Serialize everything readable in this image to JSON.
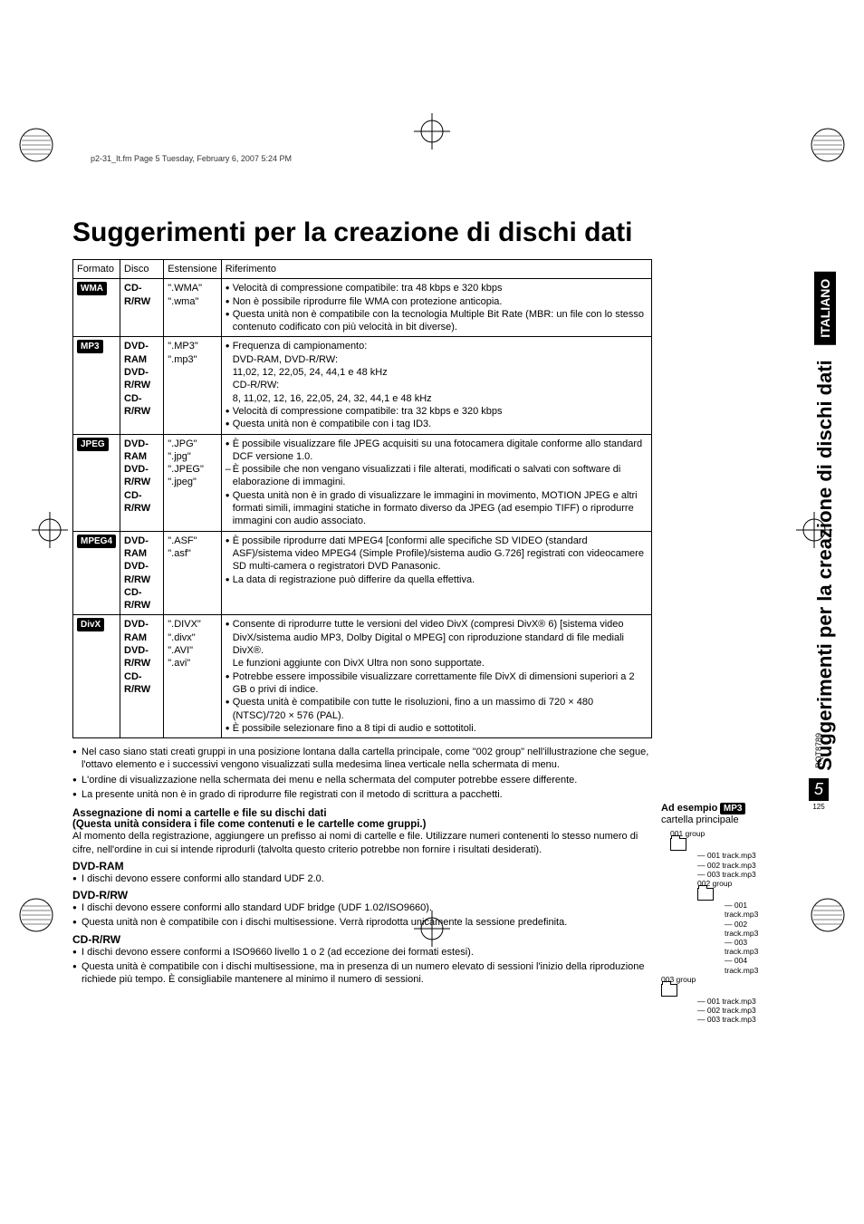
{
  "page_indicator": "p2-31_It.fm  Page 5  Tuesday, February 6, 2007  5:24 PM",
  "main_title": "Suggerimenti per la creazione di dischi dati",
  "table": {
    "headers": [
      "Formato",
      "Disco",
      "Estensione",
      "Riferimento"
    ],
    "rows": [
      {
        "format": "WMA",
        "disco": "CD-R/RW",
        "ext": "\".WMA\"\n\".wma\"",
        "ref": [
          {
            "t": "dot",
            "text": "Velocità di compressione compatibile: tra 48 kbps e 320 kbps"
          },
          {
            "t": "dot",
            "text": "Non è possibile riprodurre file WMA con protezione anticopia."
          },
          {
            "t": "dot",
            "text": "Questa unità non è compatibile con la tecnologia Multiple Bit Rate (MBR: un file con lo stesso contenuto codificato con più velocità in bit diverse)."
          }
        ]
      },
      {
        "format": "MP3",
        "disco": "DVD-RAM\nDVD-R/RW\nCD-R/RW",
        "ext": "\".MP3\"\n\".mp3\"",
        "ref": [
          {
            "t": "dot",
            "text": "Frequenza di campionamento:\nDVD-RAM, DVD-R/RW:\n11,02, 12, 22,05, 24, 44,1 e 48 kHz\nCD-R/RW:\n8, 11,02, 12, 16, 22,05, 24, 32, 44,1 e 48 kHz"
          },
          {
            "t": "dot",
            "text": "Velocità di compressione compatibile: tra 32 kbps e 320 kbps"
          },
          {
            "t": "dot",
            "text": "Questa unità non è compatibile con i tag ID3."
          }
        ]
      },
      {
        "format": "JPEG",
        "disco": "DVD-RAM\nDVD-R/RW\nCD-R/RW",
        "ext": "\".JPG\"\n\".jpg\"\n\".JPEG\"\n\".jpeg\"",
        "ref": [
          {
            "t": "dot",
            "text": "È possibile visualizzare file JPEG acquisiti su una fotocamera digitale conforme allo standard DCF versione 1.0."
          },
          {
            "t": "dash",
            "text": "È possibile che non vengano visualizzati i file alterati, modificati o salvati con software di elaborazione di immagini."
          },
          {
            "t": "dot",
            "text": "Questa unità non è in grado di visualizzare le immagini in movimento, MOTION JPEG e altri formati simili, immagini statiche in formato diverso da JPEG (ad esempio TIFF) o riprodurre immagini con audio associato."
          }
        ]
      },
      {
        "format": "MPEG4",
        "disco": "DVD-RAM\nDVD-R/RW\nCD-R/RW",
        "ext": "\".ASF\"\n\".asf\"",
        "ref": [
          {
            "t": "dot",
            "text": "È possibile riprodurre dati MPEG4 [conformi alle specifiche SD VIDEO (standard ASF)/sistema video MPEG4 (Simple Profile)/sistema audio G.726] registrati con videocamere SD multi-camera o registratori DVD Panasonic."
          },
          {
            "t": "dot",
            "text": "La data di registrazione può differire da quella effettiva."
          }
        ]
      },
      {
        "format": "DivX",
        "disco": "DVD-RAM\nDVD-R/RW\nCD-R/RW",
        "ext": "\".DIVX\"\n\".divx\"\n\".AVI\"\n\".avi\"",
        "ref": [
          {
            "t": "dot",
            "text": "Consente di riprodurre tutte le versioni del video DivX (compresi DivX® 6) [sistema video DivX/sistema audio MP3, Dolby Digital o MPEG] con riproduzione standard di file mediali DivX®.\nLe funzioni aggiunte con DivX Ultra non sono supportate."
          },
          {
            "t": "dot",
            "text": "Potrebbe essere impossibile visualizzare correttamente file DivX di dimensioni superiori a 2 GB o privi di indice."
          },
          {
            "t": "dot",
            "text": "Questa unità è compatibile con tutte le risoluzioni, fino a un massimo di 720 × 480 (NTSC)/720 × 576 (PAL)."
          },
          {
            "t": "dot",
            "text": "È possibile selezionare fino a 8 tipi di audio e sottotitoli."
          }
        ]
      }
    ]
  },
  "notes": [
    "Nel caso siano stati creati gruppi in una posizione lontana dalla cartella principale, come \"002 group\" nell'illustrazione che segue, l'ottavo elemento e i successivi vengono visualizzati sulla medesima linea verticale nella schermata di menu.",
    "L'ordine di visualizzazione nella schermata dei menu e nella schermata del computer potrebbe essere differente.",
    "La presente unità non è in grado di riprodurre file registrati con il metodo di scrittura a pacchetti."
  ],
  "assign": {
    "title": "Assegnazione di nomi a cartelle e file su dischi dati",
    "subtitle": "(Questa unità considera i file come contenuti e le cartelle come gruppi.)",
    "body": "Al momento della registrazione, aggiungere un prefisso ai nomi di cartelle e file. Utilizzare numeri contenenti lo stesso numero di cifre, nell'ordine in cui si intende riprodurli (talvolta questo criterio potrebbe non fornire i risultati desiderati)."
  },
  "dvd_ram": {
    "title": "DVD-RAM",
    "items": [
      "I dischi devono essere conformi allo standard UDF 2.0."
    ]
  },
  "dvd_rrw": {
    "title": "DVD-R/RW",
    "items": [
      "I dischi devono essere conformi allo standard UDF bridge (UDF 1.02/ISO9660).",
      "Questa unità non è compatibile con i dischi multisessione. Verrà riprodotta unicamente la sessione predefinita."
    ]
  },
  "cd_rrw": {
    "title": "CD-R/RW",
    "items": [
      "I dischi devono essere conformi a ISO9660 livello 1 o 2 (ad eccezione dei formati estesi).",
      "Questa unità è compatibile con i dischi multisessione, ma in presenza di un numero elevato di sessioni l'inizio della riproduzione richiede più tempo. È consigliabile mantenere al minimo il numero di sessioni."
    ]
  },
  "example": {
    "label": "Ad esempio",
    "badge": "MP3",
    "root": "cartella principale",
    "g1": "001 group",
    "g1_items": [
      "001 track.mp3",
      "002 track.mp3",
      "003 track.mp3"
    ],
    "g2": "002 group",
    "g2_items": [
      "001 track.mp3",
      "002 track.mp3",
      "003 track.mp3",
      "004 track.mp3"
    ],
    "g3": "003 group",
    "g3_items": [
      "001 track.mp3",
      "002 track.mp3",
      "003 track.mp3"
    ]
  },
  "sidebar": {
    "title": "Suggerimenti per la creazione di dischi dati",
    "lang": "ITALIANO"
  },
  "footer": {
    "rqt": "RQT8789",
    "page": "5",
    "abs": "125"
  }
}
